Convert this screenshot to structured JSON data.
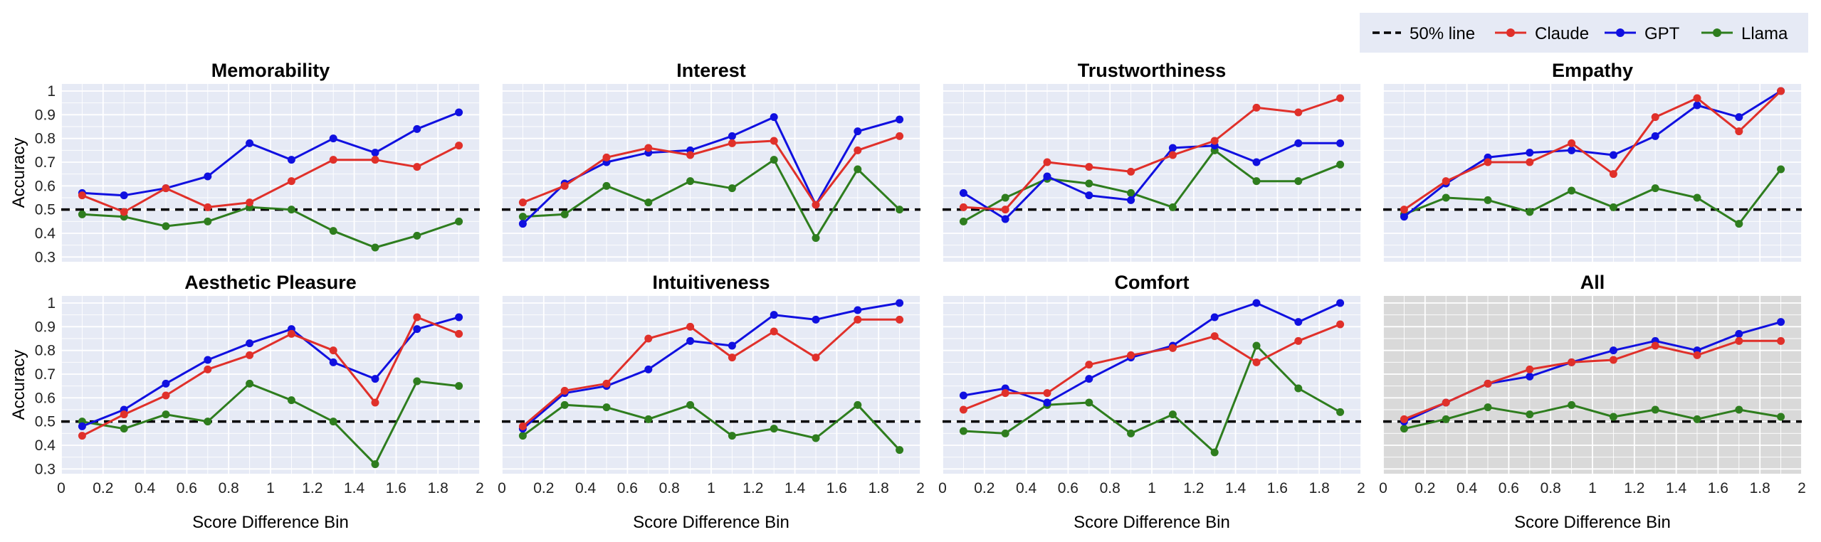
{
  "legend": [
    {
      "label": "50% line",
      "kind": "reference",
      "color": "#000000"
    },
    {
      "label": "Claude",
      "kind": "series",
      "color": "#e0302a"
    },
    {
      "label": "GPT",
      "kind": "series",
      "color": "#1010e0"
    },
    {
      "label": "Llama",
      "kind": "series",
      "color": "#2e7d1e"
    }
  ],
  "colors": {
    "panel_bg": "#e6eaf5",
    "panel_bg_highlight": "#d9d9d9",
    "grid": "#ffffff"
  },
  "chart_data": [
    {
      "type": "line",
      "title": "Memorability",
      "xlabel": "",
      "ylabel": "Accuracy",
      "xlim": [
        0,
        2
      ],
      "ylim": [
        0.28,
        1.03
      ],
      "grid": true,
      "reference_line": 0.5,
      "x": [
        0.1,
        0.3,
        0.5,
        0.7,
        0.9,
        1.1,
        1.3,
        1.5,
        1.7,
        1.9
      ],
      "series": [
        {
          "name": "Claude",
          "values": [
            0.56,
            0.49,
            0.59,
            0.51,
            0.53,
            0.62,
            0.71,
            0.71,
            0.68,
            0.77
          ]
        },
        {
          "name": "GPT",
          "values": [
            0.57,
            0.56,
            0.59,
            0.64,
            0.78,
            0.71,
            0.8,
            0.74,
            0.84,
            0.91
          ]
        },
        {
          "name": "Llama",
          "values": [
            0.48,
            0.47,
            0.43,
            0.45,
            0.51,
            0.5,
            0.41,
            0.34,
            0.39,
            0.45
          ]
        }
      ]
    },
    {
      "type": "line",
      "title": "Interest",
      "xlabel": "",
      "ylabel": "",
      "xlim": [
        0,
        2
      ],
      "ylim": [
        0.28,
        1.03
      ],
      "grid": true,
      "reference_line": 0.5,
      "x": [
        0.1,
        0.3,
        0.5,
        0.7,
        0.9,
        1.1,
        1.3,
        1.5,
        1.7,
        1.9
      ],
      "series": [
        {
          "name": "Claude",
          "values": [
            0.53,
            0.6,
            0.72,
            0.76,
            0.73,
            0.78,
            0.79,
            0.52,
            0.75,
            0.81
          ]
        },
        {
          "name": "GPT",
          "values": [
            0.44,
            0.61,
            0.7,
            0.74,
            0.75,
            0.81,
            0.89,
            0.52,
            0.83,
            0.88
          ]
        },
        {
          "name": "Llama",
          "values": [
            0.47,
            0.48,
            0.6,
            0.53,
            0.62,
            0.59,
            0.71,
            0.38,
            0.67,
            0.5
          ]
        }
      ]
    },
    {
      "type": "line",
      "title": "Trustworthiness",
      "xlabel": "",
      "ylabel": "",
      "xlim": [
        0,
        2
      ],
      "ylim": [
        0.28,
        1.03
      ],
      "grid": true,
      "reference_line": 0.5,
      "x": [
        0.1,
        0.3,
        0.5,
        0.7,
        0.9,
        1.1,
        1.3,
        1.5,
        1.7,
        1.9
      ],
      "series": [
        {
          "name": "Claude",
          "values": [
            0.51,
            0.5,
            0.7,
            0.68,
            0.66,
            0.73,
            0.79,
            0.93,
            0.91,
            0.97
          ]
        },
        {
          "name": "GPT",
          "values": [
            0.57,
            0.46,
            0.64,
            0.56,
            0.54,
            0.76,
            0.77,
            0.7,
            0.78,
            0.78
          ]
        },
        {
          "name": "Llama",
          "values": [
            0.45,
            0.55,
            0.63,
            0.61,
            0.57,
            0.51,
            0.75,
            0.62,
            0.62,
            0.69
          ]
        }
      ]
    },
    {
      "type": "line",
      "title": "Empathy",
      "xlabel": "",
      "ylabel": "",
      "xlim": [
        0,
        2
      ],
      "ylim": [
        0.28,
        1.03
      ],
      "grid": true,
      "reference_line": 0.5,
      "x": [
        0.1,
        0.3,
        0.5,
        0.7,
        0.9,
        1.1,
        1.3,
        1.5,
        1.7,
        1.9
      ],
      "series": [
        {
          "name": "Claude",
          "values": [
            0.5,
            0.62,
            0.7,
            0.7,
            0.78,
            0.65,
            0.89,
            0.97,
            0.83,
            1.0
          ]
        },
        {
          "name": "GPT",
          "values": [
            0.47,
            0.61,
            0.72,
            0.74,
            0.75,
            0.73,
            0.81,
            0.94,
            0.89,
            1.0
          ]
        },
        {
          "name": "Llama",
          "values": [
            0.48,
            0.55,
            0.54,
            0.49,
            0.58,
            0.51,
            0.59,
            0.55,
            0.44,
            0.67
          ]
        }
      ]
    },
    {
      "type": "line",
      "title": "Aesthetic Pleasure",
      "xlabel": "Score Difference Bin",
      "ylabel": "Accuracy",
      "xlim": [
        0,
        2
      ],
      "ylim": [
        0.28,
        1.03
      ],
      "grid": true,
      "reference_line": 0.5,
      "x": [
        0.1,
        0.3,
        0.5,
        0.7,
        0.9,
        1.1,
        1.3,
        1.5,
        1.7,
        1.9
      ],
      "series": [
        {
          "name": "Claude",
          "values": [
            0.44,
            0.53,
            0.61,
            0.72,
            0.78,
            0.87,
            0.8,
            0.58,
            0.94,
            0.87
          ]
        },
        {
          "name": "GPT",
          "values": [
            0.48,
            0.55,
            0.66,
            0.76,
            0.83,
            0.89,
            0.75,
            0.68,
            0.89,
            0.94
          ]
        },
        {
          "name": "Llama",
          "values": [
            0.5,
            0.47,
            0.53,
            0.5,
            0.66,
            0.59,
            0.5,
            0.32,
            0.67,
            0.65
          ]
        }
      ]
    },
    {
      "type": "line",
      "title": "Intuitiveness",
      "xlabel": "Score Difference Bin",
      "ylabel": "",
      "xlim": [
        0,
        2
      ],
      "ylim": [
        0.28,
        1.03
      ],
      "grid": true,
      "reference_line": 0.5,
      "x": [
        0.1,
        0.3,
        0.5,
        0.7,
        0.9,
        1.1,
        1.3,
        1.5,
        1.7,
        1.9
      ],
      "series": [
        {
          "name": "Claude",
          "values": [
            0.48,
            0.63,
            0.66,
            0.85,
            0.9,
            0.77,
            0.88,
            0.77,
            0.93,
            0.93
          ]
        },
        {
          "name": "GPT",
          "values": [
            0.47,
            0.62,
            0.65,
            0.72,
            0.84,
            0.82,
            0.95,
            0.93,
            0.97,
            1.0
          ]
        },
        {
          "name": "Llama",
          "values": [
            0.44,
            0.57,
            0.56,
            0.51,
            0.57,
            0.44,
            0.47,
            0.43,
            0.57,
            0.38
          ]
        }
      ]
    },
    {
      "type": "line",
      "title": "Comfort",
      "xlabel": "Score Difference Bin",
      "ylabel": "",
      "xlim": [
        0,
        2
      ],
      "ylim": [
        0.28,
        1.03
      ],
      "grid": true,
      "reference_line": 0.5,
      "x": [
        0.1,
        0.3,
        0.5,
        0.7,
        0.9,
        1.1,
        1.3,
        1.5,
        1.7,
        1.9
      ],
      "series": [
        {
          "name": "Claude",
          "values": [
            0.55,
            0.62,
            0.62,
            0.74,
            0.78,
            0.81,
            0.86,
            0.75,
            0.84,
            0.91
          ]
        },
        {
          "name": "GPT",
          "values": [
            0.61,
            0.64,
            0.58,
            0.68,
            0.77,
            0.82,
            0.94,
            1.0,
            0.92,
            1.0
          ]
        },
        {
          "name": "Llama",
          "values": [
            0.46,
            0.45,
            0.57,
            0.58,
            0.45,
            0.53,
            0.37,
            0.82,
            0.64,
            0.54
          ]
        }
      ]
    },
    {
      "type": "line",
      "title": "All",
      "xlabel": "Score Difference Bin",
      "ylabel": "",
      "xlim": [
        0,
        2
      ],
      "ylim": [
        0.28,
        1.03
      ],
      "grid": true,
      "reference_line": 0.5,
      "highlight": true,
      "x": [
        0.1,
        0.3,
        0.5,
        0.7,
        0.9,
        1.1,
        1.3,
        1.5,
        1.7,
        1.9
      ],
      "series": [
        {
          "name": "Claude",
          "values": [
            0.51,
            0.58,
            0.66,
            0.72,
            0.75,
            0.76,
            0.82,
            0.78,
            0.84,
            0.84
          ]
        },
        {
          "name": "GPT",
          "values": [
            0.5,
            0.58,
            0.66,
            0.69,
            0.75,
            0.8,
            0.84,
            0.8,
            0.87,
            0.92
          ]
        },
        {
          "name": "Llama",
          "values": [
            0.47,
            0.51,
            0.56,
            0.53,
            0.57,
            0.52,
            0.55,
            0.51,
            0.55,
            0.52
          ]
        }
      ]
    }
  ],
  "axes": {
    "xticks": [
      "0",
      "0.2",
      "0.4",
      "0.6",
      "0.8",
      "1",
      "1.2",
      "1.4",
      "1.6",
      "1.8",
      "2"
    ],
    "yticks": [
      "0.3",
      "0.4",
      "0.5",
      "0.6",
      "0.7",
      "0.8",
      "0.9",
      "1"
    ]
  }
}
